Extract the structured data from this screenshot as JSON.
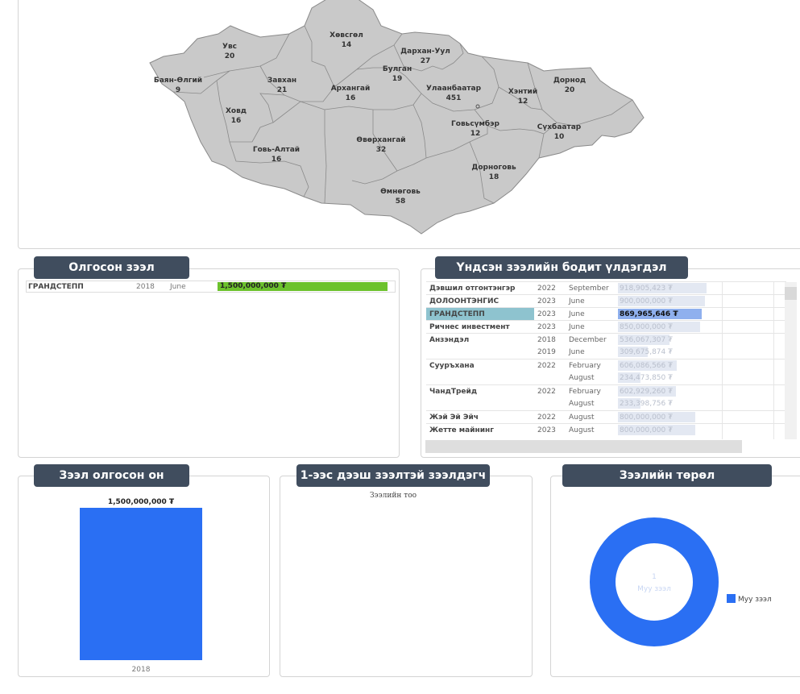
{
  "map": {
    "provinces": [
      {
        "name": "Увс",
        "value": "20"
      },
      {
        "name": "Хөвсгөл",
        "value": "14"
      },
      {
        "name": "Дархан-Уул",
        "value": "27"
      },
      {
        "name": "Булган",
        "value": "19"
      },
      {
        "name": "Баян-Өлгий",
        "value": "9"
      },
      {
        "name": "Завхан",
        "value": "21"
      },
      {
        "name": "Архангай",
        "value": "16"
      },
      {
        "name": "Улаанбаатар",
        "value": "451"
      },
      {
        "name": "Хэнтий",
        "value": "12"
      },
      {
        "name": "Дорнод",
        "value": "20"
      },
      {
        "name": "Ховд",
        "value": "16"
      },
      {
        "name": "Говьсүмбэр",
        "value": "12"
      },
      {
        "name": "Сүхбаатар",
        "value": "10"
      },
      {
        "name": "Говь-Алтай",
        "value": "16"
      },
      {
        "name": "Өвөрхангай",
        "value": "32"
      },
      {
        "name": "Дорноговь",
        "value": "18"
      },
      {
        "name": "Өмнөговь",
        "value": "58"
      }
    ]
  },
  "loan_panel": {
    "title": "Олгосон зээл",
    "row": {
      "name": "ГРАНДСТЕПП",
      "year": "2018",
      "month": "June",
      "amount": "1,500,000,000 ₮"
    }
  },
  "balance_panel": {
    "title": "Үндсэн зээлийн бодит үлдэгдэл",
    "rows": [
      {
        "name": "Дэвшил отгонтэнгэр",
        "year": "2022",
        "month": "September",
        "amount": "918,905,423 ₮",
        "frac": 0.6125
      },
      {
        "name": "ДОЛООНТЭНГИС",
        "year": "2023",
        "month": "June",
        "amount": "900,000,000 ₮",
        "frac": 0.6
      },
      {
        "name": "ГРАНДСТЕПП",
        "year": "2023",
        "month": "June",
        "amount": "869,965,646 ₮",
        "frac": 0.58
      },
      {
        "name": "Ричнес инвестмент",
        "year": "2023",
        "month": "June",
        "amount": "850,000,000 ₮",
        "frac": 0.5667
      },
      {
        "name": "Анзэндэл",
        "year": "2018",
        "month": "December",
        "amount": "536,067,307 ₮",
        "frac": 0.357
      },
      {
        "name": "",
        "year": "2019",
        "month": "June",
        "amount": "309,675,874 ₮",
        "frac": 0.206
      },
      {
        "name": "Сууръхана",
        "year": "2022",
        "month": "February",
        "amount": "606,086,566 ₮",
        "frac": 0.404
      },
      {
        "name": "",
        "year": "",
        "month": "August",
        "amount": "234,473,850 ₮",
        "frac": 0.156
      },
      {
        "name": "ЧандТрейд",
        "year": "2022",
        "month": "February",
        "amount": "602,929,260 ₮",
        "frac": 0.402
      },
      {
        "name": "",
        "year": "",
        "month": "August",
        "amount": "233,398,756 ₮",
        "frac": 0.155
      },
      {
        "name": "Жэй Эй Эйч",
        "year": "2022",
        "month": "August",
        "amount": "800,000,000 ₮",
        "frac": 0.533
      },
      {
        "name": "Жетте майнинг",
        "year": "2023",
        "month": "August",
        "amount": "800,000,000 ₮",
        "frac": 0.533
      }
    ]
  },
  "year_panel": {
    "title": "Зээл олгосон он"
  },
  "dup_panel": {
    "title": "1-ээс дээш зээлтэй зээлдэгч",
    "axis_label": "Зээлийн тоо"
  },
  "type_panel": {
    "title": "Зээлийн төрөл",
    "center_value": "1",
    "center_label": "Муу зээл",
    "legend_label": "Муу зээл"
  },
  "chart_data": [
    {
      "type": "bar",
      "categories": [
        "2018"
      ],
      "values": [
        1500000000
      ],
      "data_labels": [
        "1,500,000,000 ₮"
      ],
      "colors": [
        "#2a6ff3"
      ]
    },
    {
      "type": "pie",
      "labels": [
        "Муу зээл"
      ],
      "values": [
        1
      ],
      "colors": [
        "#2a6ff3"
      ]
    }
  ],
  "colors": {
    "title_bg": "#404d5e",
    "loan_bar": "#6cc22d",
    "bar_blue": "#2a6ff3",
    "highlight": "#8ec3cf"
  }
}
